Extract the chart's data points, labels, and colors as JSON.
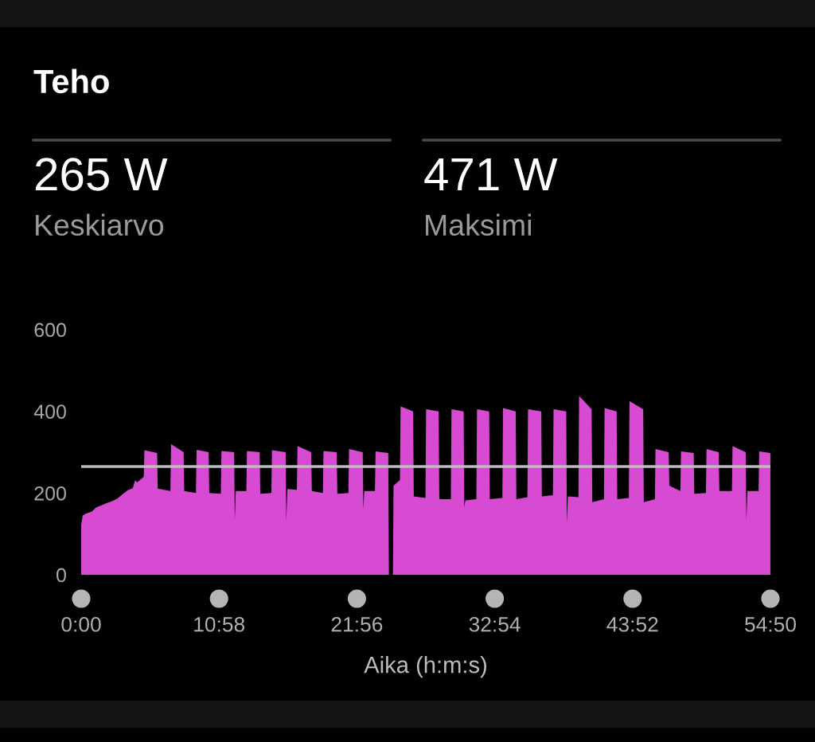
{
  "chart_data": {
    "type": "area",
    "title": "Teho",
    "xlabel": "Aika (h:m:s)",
    "annotations": [
      "265 W",
      "Keskiarvo",
      "471 W",
      "Maksimi"
    ],
    "x": [
      0,
      0.12,
      0.4,
      0.85,
      1.2,
      1.6,
      2.05,
      2.45,
      2.9,
      3.3,
      3.7,
      4.1,
      4.3,
      4.45,
      4.98,
      5.03,
      6.04,
      6.09,
      7.1,
      7.15,
      8.15,
      8.2,
      9.13,
      9.18,
      10.14,
      10.19,
      11.11,
      11.16,
      12.17,
      12.22,
      12.3,
      13.14,
      13.19,
      14.2,
      14.25,
      15.13,
      15.18,
      16.27,
      16.32,
      16.4,
      17.16,
      17.21,
      18.3,
      18.35,
      19.23,
      19.28,
      20.33,
      20.38,
      21.26,
      21.31,
      22.4,
      22.45,
      22.52,
      23.37,
      23.42,
      24.43,
      24.48,
      24.8,
      24.85,
      25.36,
      25.41,
      26.41,
      26.46,
      27.39,
      27.44,
      28.44,
      28.49,
      29.41,
      29.46,
      30.43,
      30.48,
      30.56,
      31.44,
      31.49,
      32.46,
      32.51,
      33.51,
      33.56,
      34.57,
      34.62,
      35.5,
      35.55,
      36.6,
      36.65,
      37.53,
      37.58,
      38.59,
      38.64,
      38.72,
      39.56,
      39.61,
      40.61,
      40.66,
      41.59,
      41.64,
      42.6,
      42.65,
      43.57,
      43.62,
      44.71,
      44.76,
      45.64,
      45.69,
      46.74,
      46.79,
      47.67,
      47.72,
      48.73,
      48.78,
      49.7,
      49.75,
      50.72,
      50.77,
      51.77,
      51.82,
      52.87,
      52.92,
      53.0,
      53.89,
      53.94,
      54.83
    ],
    "series": [
      {
        "color": "#d64bd2",
        "values": [
          122,
          145,
          150,
          155,
          165,
          170,
          176,
          180,
          187,
          197,
          207,
          212,
          232,
          226,
          240,
          305,
          298,
          211,
          205,
          320,
          300,
          205,
          200,
          306,
          300,
          200,
          198,
          303,
          300,
          135,
          205,
          205,
          303,
          300,
          198,
          200,
          305,
          300,
          133,
          210,
          208,
          315,
          300,
          205,
          200,
          303,
          300,
          198,
          200,
          308,
          300,
          160,
          205,
          205,
          302,
          298,
          0,
          0,
          218,
          232,
          412,
          400,
          192,
          188,
          405,
          400,
          185,
          185,
          405,
          400,
          165,
          182,
          185,
          405,
          400,
          185,
          188,
          408,
          400,
          185,
          190,
          405,
          400,
          192,
          195,
          405,
          400,
          127,
          192,
          190,
          438,
          405,
          178,
          185,
          408,
          400,
          185,
          188,
          425,
          405,
          178,
          185,
          308,
          300,
          218,
          205,
          302,
          298,
          198,
          200,
          308,
          300,
          205,
          205,
          315,
          300,
          133,
          205,
          205,
          302,
          298
        ]
      }
    ],
    "xlim": [
      0,
      54.8333
    ],
    "xticks": [
      {
        "value": 0,
        "label": "0:00"
      },
      {
        "value": 10.9667,
        "label": "10:58"
      },
      {
        "value": 21.9333,
        "label": "21:56"
      },
      {
        "value": 32.9,
        "label": "32:54"
      },
      {
        "value": 43.8667,
        "label": "43:52"
      },
      {
        "value": 54.8333,
        "label": "54:50"
      }
    ],
    "ylim": [
      0,
      600
    ],
    "yticks": [
      0,
      200,
      400,
      600
    ],
    "ref_lines": [
      {
        "axis": "y",
        "value": 265,
        "color": "#bdbdbd"
      }
    ]
  }
}
